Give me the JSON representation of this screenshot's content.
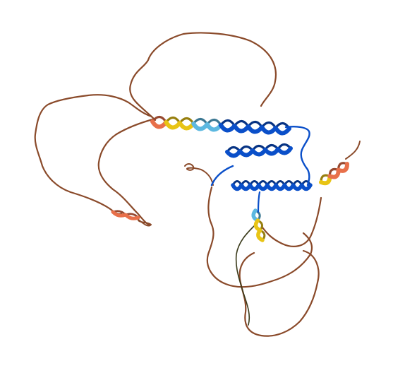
{
  "image": {
    "kind": "protein-structure-cartoon",
    "background": "#ffffff",
    "confidence_colors": {
      "very_high": "#0a4fc9",
      "confident": "#5cb8e0",
      "low": "#e8c415",
      "very_low": "#e8704a",
      "coil": "#8a4a2a"
    }
  }
}
